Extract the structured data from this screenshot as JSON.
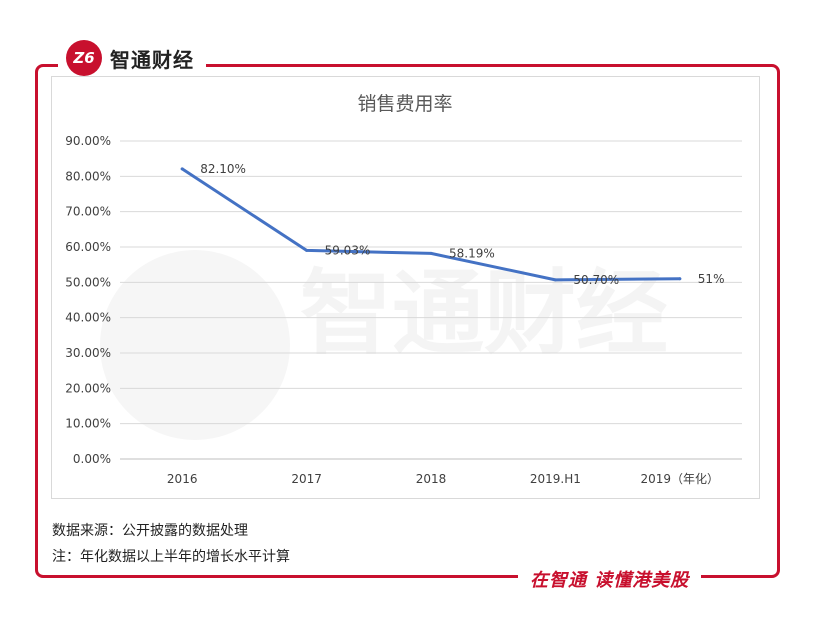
{
  "brand": {
    "logo_text": "Z6",
    "name": "智通财经",
    "slogan": "在智通 读懂港美股",
    "color": "#c8102e"
  },
  "watermark": {
    "text": "智通财经"
  },
  "notes": {
    "source": "数据来源：公开披露的数据处理",
    "note": "注：年化数据以上半年的增长水平计算"
  },
  "chart_data": {
    "type": "line",
    "title": "销售费用率",
    "categories": [
      "2016",
      "2017",
      "2018",
      "2019.H1",
      "2019（年化）"
    ],
    "series": [
      {
        "values": [
          82.1,
          59.03,
          58.19,
          50.7,
          51
        ],
        "data_labels": [
          "82.10%",
          "59.03%",
          "58.19%",
          "50.70%",
          "51%"
        ],
        "color": "#4472c4"
      }
    ],
    "yticks": [
      "0.00%",
      "10.00%",
      "20.00%",
      "30.00%",
      "40.00%",
      "50.00%",
      "60.00%",
      "70.00%",
      "80.00%",
      "90.00%"
    ],
    "ylim": [
      0,
      90
    ],
    "grid": true,
    "legend": "none"
  }
}
